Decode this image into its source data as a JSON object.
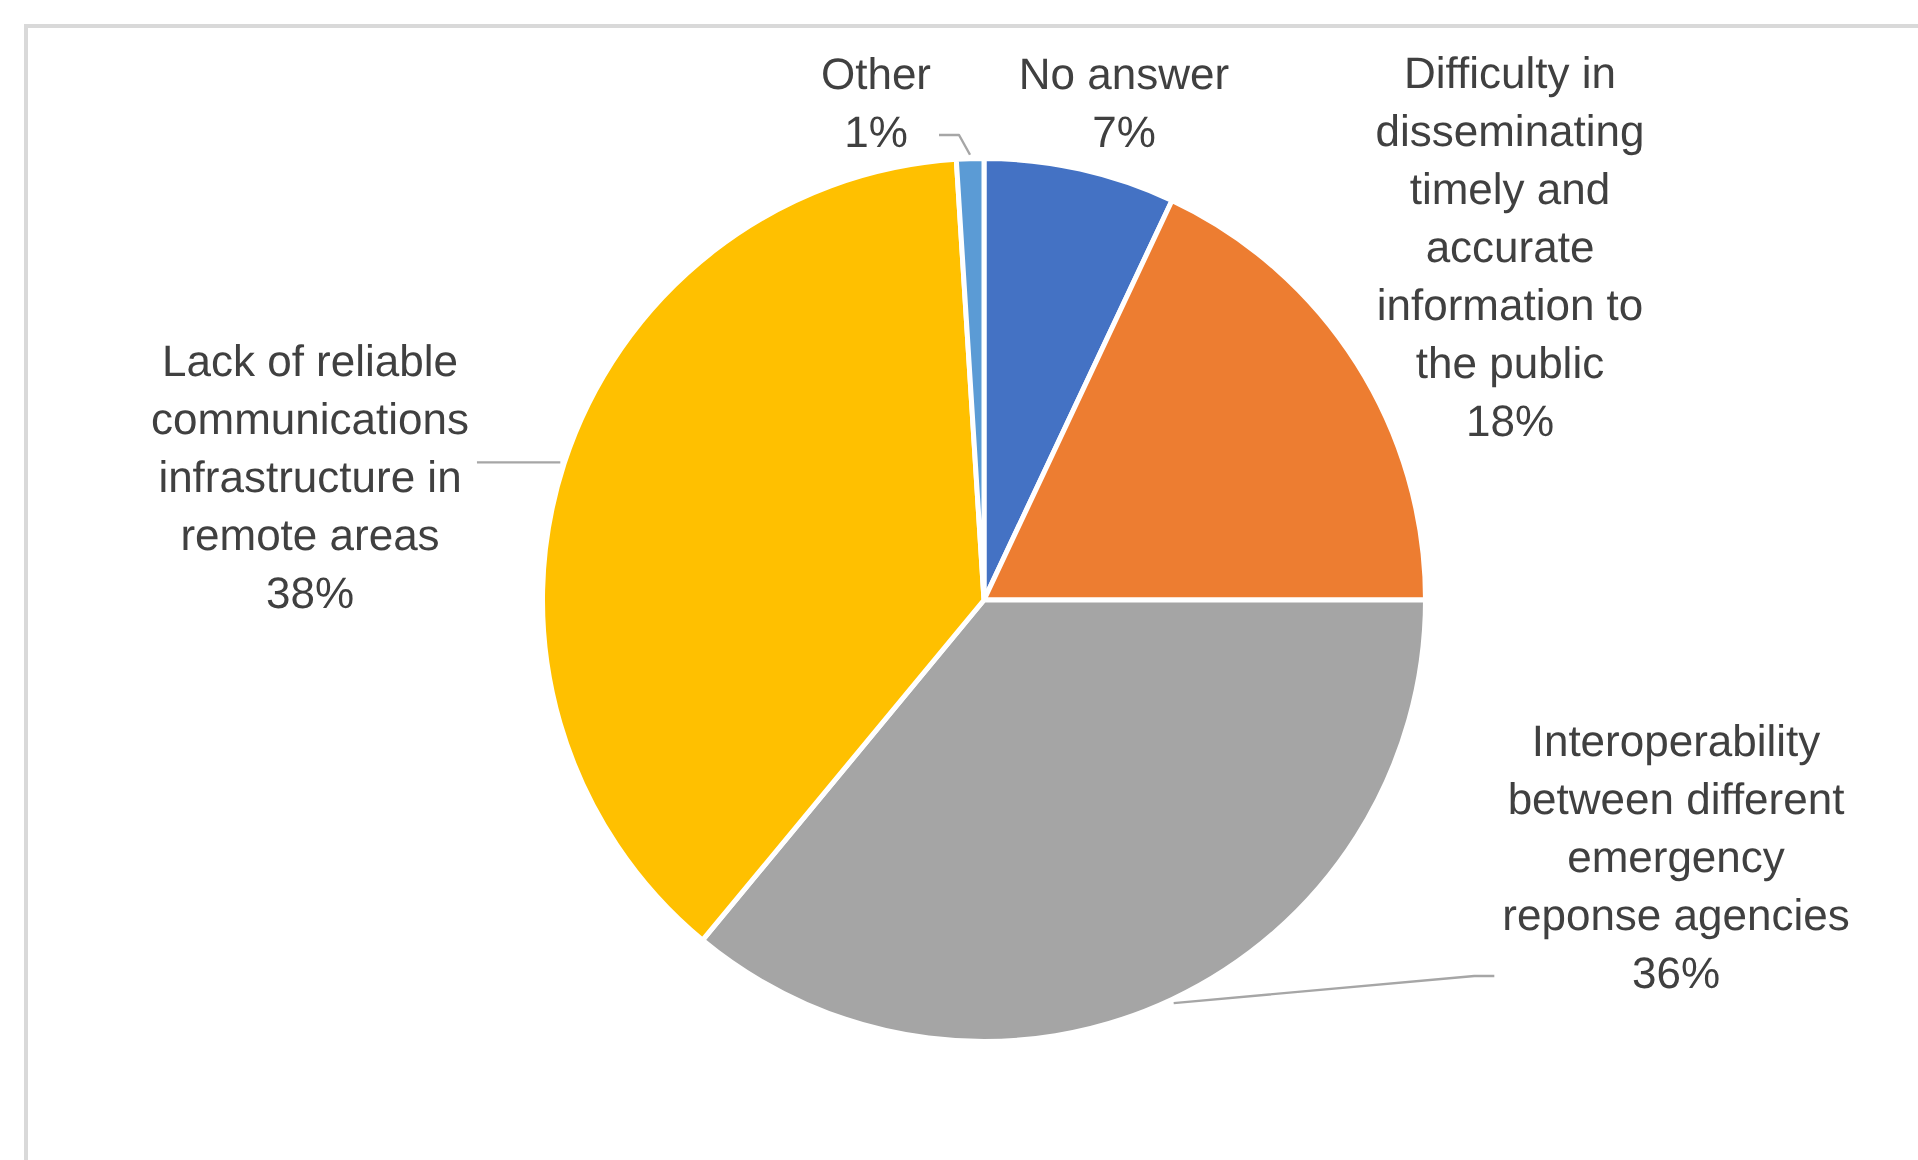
{
  "chart_data": {
    "type": "pie",
    "categories": [
      "No answer",
      "Difficulty in disseminating timely and accurate information to the public",
      "Interoperability between different emergency reponse agencies",
      "Lack of reliable communications infrastructure in remote areas",
      "Other"
    ],
    "values": [
      7,
      18,
      36,
      38,
      1
    ],
    "value_labels": [
      "7%",
      "18%",
      "36%",
      "38%",
      "1%"
    ],
    "colors": [
      "#4472c4",
      "#ed7d31",
      "#a5a5a5",
      "#ffc000",
      "#5b9bd5"
    ]
  }
}
